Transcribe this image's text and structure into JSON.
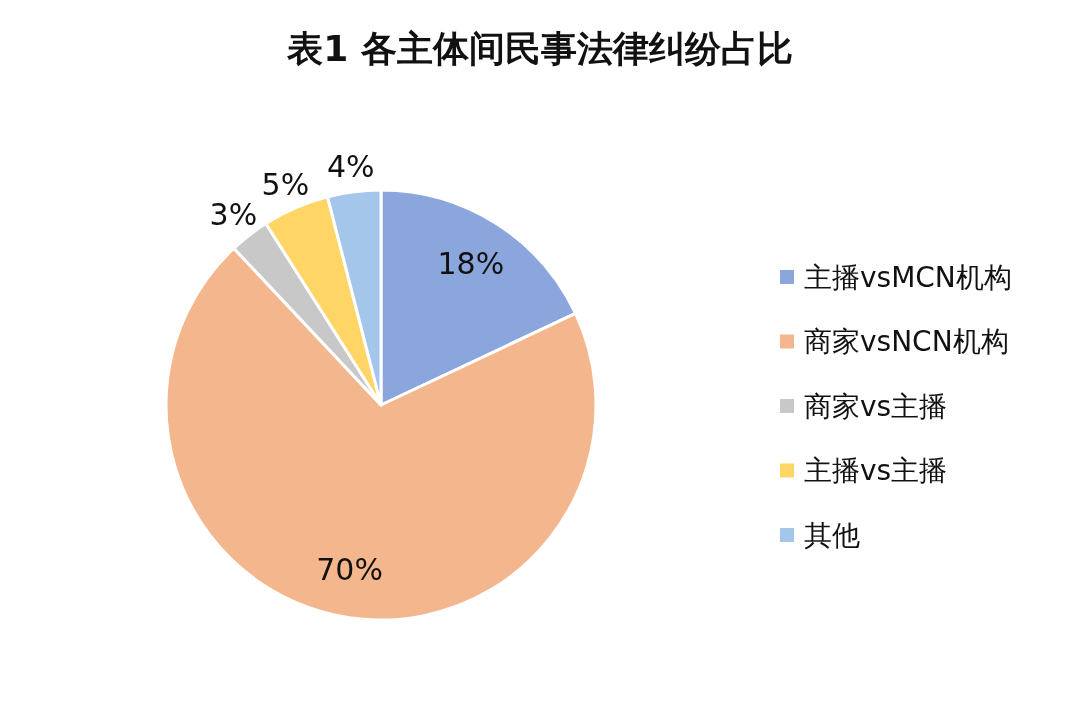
{
  "chart_data": {
    "type": "pie",
    "title": "表1  各主体间民事法律纠纷占比",
    "categories": [
      "主播vsMCN机构",
      "商家vsNCN机构",
      "商家vs主播",
      "主播vs主播",
      "其他"
    ],
    "values": [
      18,
      70,
      3,
      5,
      4
    ],
    "colors": [
      "#8aa6dc",
      "#f4b68c",
      "#c8c8c8",
      "#ffd666",
      "#a3c6ea"
    ],
    "value_labels": [
      "18%",
      "70%",
      "3%",
      "5%",
      "4%"
    ],
    "legend": "right"
  }
}
